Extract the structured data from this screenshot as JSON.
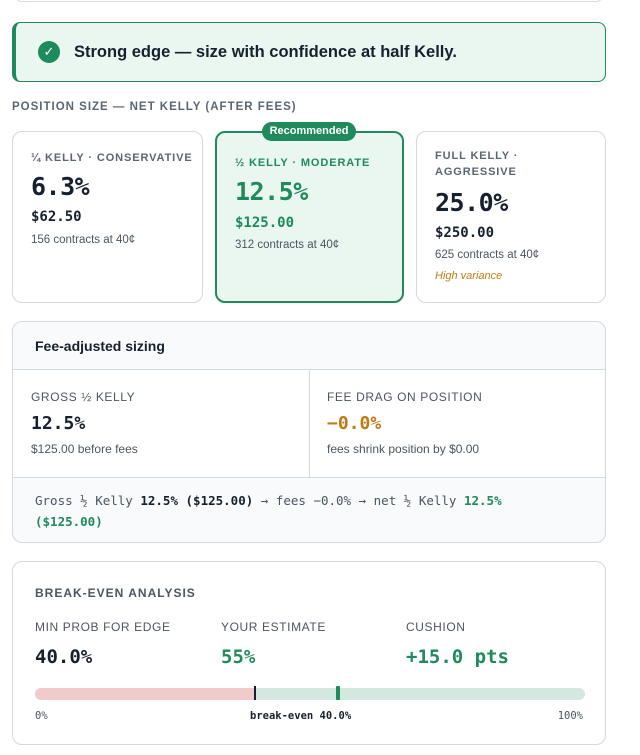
{
  "banner": {
    "icon": "check-circle-icon",
    "text": "Strong edge — size with confidence at half Kelly."
  },
  "position_size": {
    "label": "POSITION SIZE — NET KELLY (AFTER FEES)",
    "badge": "Recommended",
    "cards": [
      {
        "tier": "¼ KELLY · CONSERVATIVE",
        "pct": "6.3%",
        "amount": "$62.50",
        "contracts": "156 contracts at 40¢",
        "note": ""
      },
      {
        "tier": "½ KELLY · MODERATE",
        "pct": "12.5%",
        "amount": "$125.00",
        "contracts": "312 contracts at 40¢",
        "note": ""
      },
      {
        "tier": "FULL KELLY · AGGRESSIVE",
        "pct": "25.0%",
        "amount": "$250.00",
        "contracts": "625 contracts at 40¢",
        "note": "High variance"
      }
    ]
  },
  "fee_sizing": {
    "title": "Fee-adjusted sizing",
    "gross": {
      "label": "GROSS ½ KELLY",
      "value": "12.5%",
      "sub": "$125.00 before fees"
    },
    "drag": {
      "label": "FEE DRAG ON POSITION",
      "value": "−0.0%",
      "sub": "fees shrink position by $0.00"
    },
    "formula": {
      "p1": "Gross ½ Kelly ",
      "gross": "12.5% ($125.00)",
      "p2": " → fees −0.0% → net ½ Kelly ",
      "net": "12.5% ($125.00)"
    }
  },
  "break_even": {
    "title": "BREAK-EVEN ANALYSIS",
    "min_prob": {
      "label": "MIN PROB FOR EDGE",
      "value": "40.0%"
    },
    "estimate": {
      "label": "YOUR ESTIMATE",
      "value": "55%"
    },
    "cushion": {
      "label": "CUSHION",
      "value": "+15.0 pts"
    },
    "bar": {
      "break_even_fraction": 0.4,
      "estimate_fraction": 0.55,
      "axis_left": "0%",
      "axis_mid": "break-even 40.0%",
      "axis_right": "100%"
    },
    "colors": {
      "below": "#f1cbcb",
      "above": "#d3e8df",
      "estimate": "#1f8a5b"
    }
  }
}
